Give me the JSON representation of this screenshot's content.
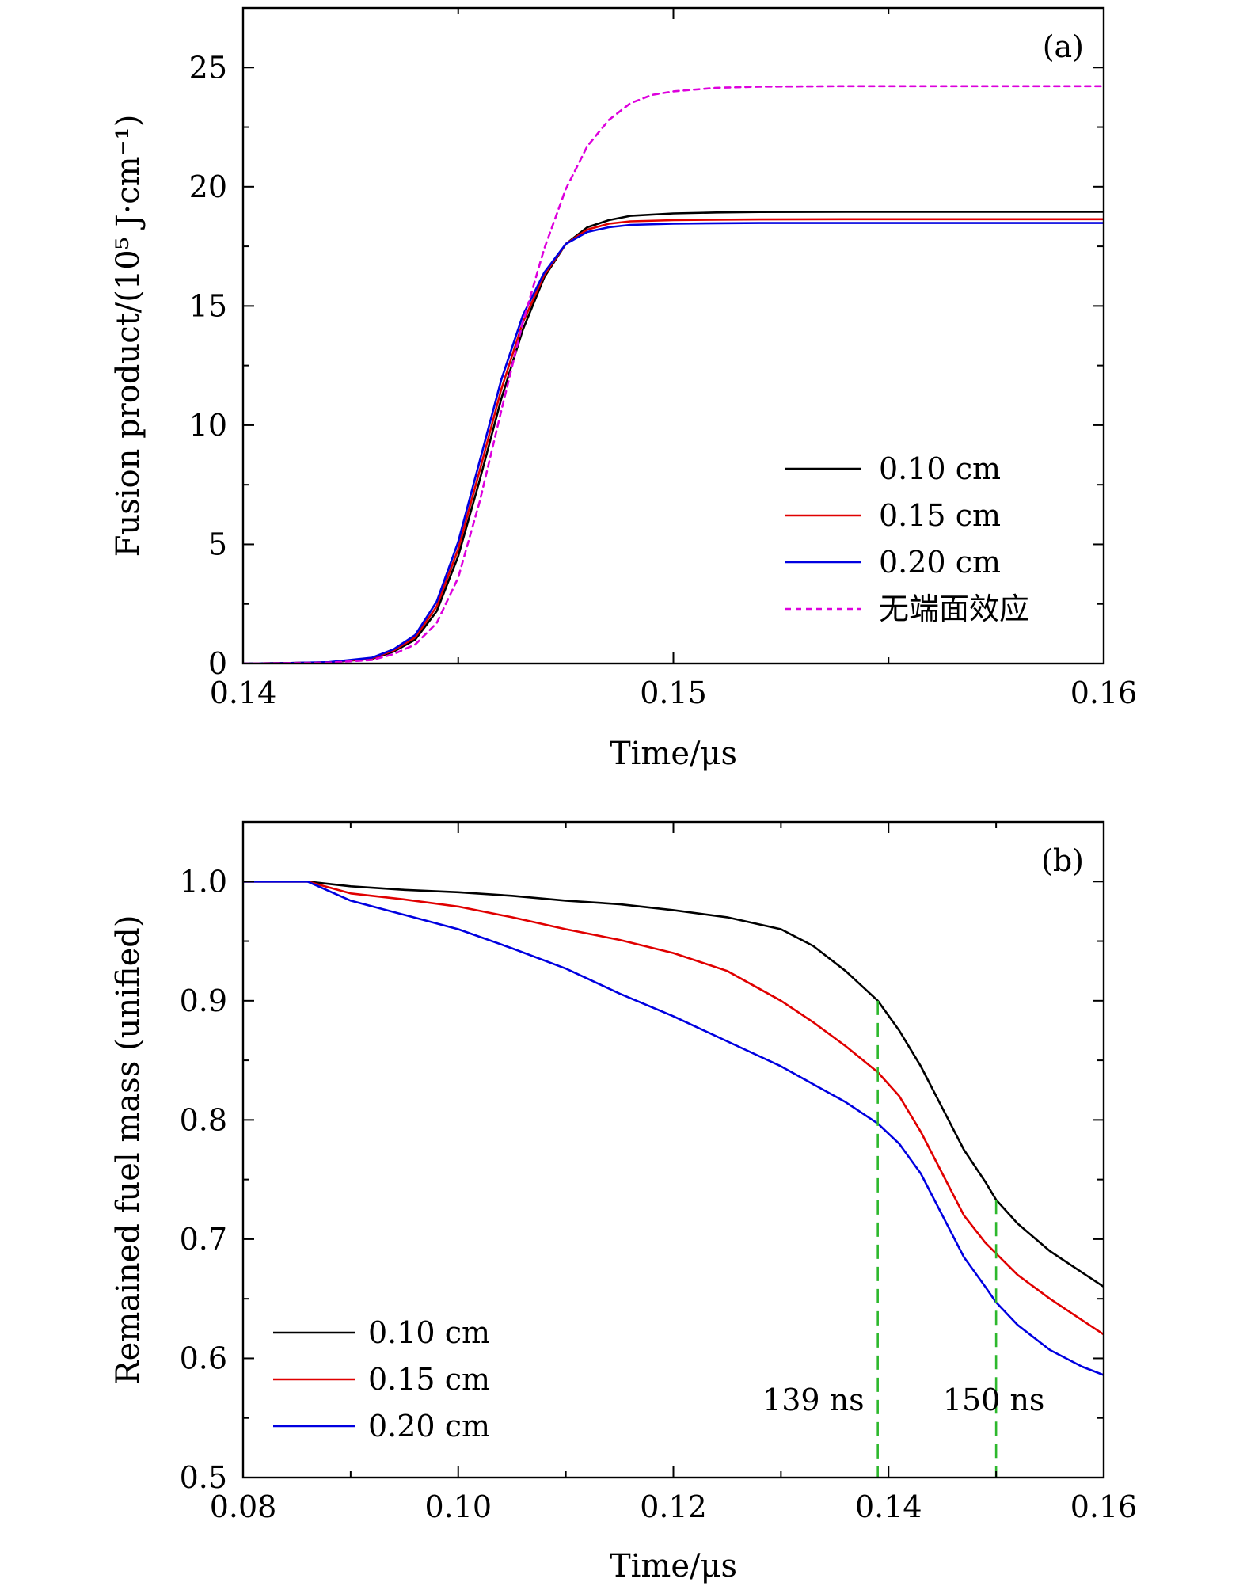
{
  "chart_data": [
    {
      "type": "line",
      "panel_label": "(a)",
      "xlabel": "Time/μs",
      "ylabel": "Fusion product/(10⁵ J·cm⁻¹)",
      "xlim": [
        0.14,
        0.16
      ],
      "ylim": [
        0,
        27.5
      ],
      "xticks": [
        0.14,
        0.15,
        0.16
      ],
      "xtick_labels": [
        "0.14",
        "0.15",
        "0.16"
      ],
      "xminor": [
        0.145,
        0.155
      ],
      "yticks": [
        0,
        5,
        10,
        15,
        20,
        25
      ],
      "ytick_labels": [
        "0",
        "5",
        "10",
        "15",
        "20",
        "25"
      ],
      "yminor": [
        2.5,
        7.5,
        12.5,
        17.5,
        22.5
      ],
      "legend_position": "right",
      "series": [
        {
          "name": "0.10 cm",
          "color": "#000000",
          "dash": "solid",
          "x": [
            0.14,
            0.141,
            0.142,
            0.143,
            0.1435,
            0.144,
            0.1445,
            0.145,
            0.1455,
            0.146,
            0.1465,
            0.147,
            0.1475,
            0.148,
            0.1485,
            0.149,
            0.15,
            0.151,
            0.152,
            0.154,
            0.156,
            0.158,
            0.16
          ],
          "y": [
            0,
            0.02,
            0.05,
            0.2,
            0.5,
            1.0,
            2.2,
            4.5,
            7.7,
            11.1,
            14.0,
            16.2,
            17.6,
            18.3,
            18.6,
            18.78,
            18.88,
            18.92,
            18.94,
            18.95,
            18.95,
            18.95,
            18.95
          ]
        },
        {
          "name": "0.15 cm",
          "color": "#e00000",
          "dash": "solid",
          "x": [
            0.14,
            0.141,
            0.142,
            0.143,
            0.1435,
            0.144,
            0.1445,
            0.145,
            0.1455,
            0.146,
            0.1465,
            0.147,
            0.1475,
            0.148,
            0.1485,
            0.149,
            0.15,
            0.151,
            0.152,
            0.154,
            0.156,
            0.158,
            0.16
          ],
          "y": [
            0,
            0.02,
            0.05,
            0.22,
            0.55,
            1.1,
            2.4,
            4.8,
            8.1,
            11.5,
            14.3,
            16.3,
            17.6,
            18.2,
            18.45,
            18.55,
            18.6,
            18.62,
            18.63,
            18.64,
            18.64,
            18.64,
            18.64
          ]
        },
        {
          "name": "0.20 cm",
          "color": "#0000e0",
          "dash": "solid",
          "x": [
            0.14,
            0.141,
            0.142,
            0.143,
            0.1435,
            0.144,
            0.1445,
            0.145,
            0.1455,
            0.146,
            0.1465,
            0.147,
            0.1475,
            0.148,
            0.1485,
            0.149,
            0.15,
            0.151,
            0.152,
            0.154,
            0.156,
            0.158,
            0.16
          ],
          "y": [
            0,
            0.02,
            0.06,
            0.25,
            0.6,
            1.2,
            2.6,
            5.1,
            8.5,
            11.9,
            14.6,
            16.4,
            17.6,
            18.1,
            18.3,
            18.4,
            18.45,
            18.47,
            18.48,
            18.48,
            18.48,
            18.48,
            18.48
          ]
        },
        {
          "name": "无端面效应",
          "color": "#dd00dd",
          "dash": "dashed",
          "x": [
            0.14,
            0.141,
            0.142,
            0.143,
            0.1435,
            0.144,
            0.1445,
            0.145,
            0.1455,
            0.146,
            0.1465,
            0.147,
            0.1475,
            0.148,
            0.1485,
            0.149,
            0.1495,
            0.15,
            0.151,
            0.152,
            0.154,
            0.156,
            0.158,
            0.16
          ],
          "y": [
            0,
            0.02,
            0.04,
            0.15,
            0.4,
            0.8,
            1.7,
            3.6,
            6.8,
            10.6,
            14.3,
            17.4,
            19.9,
            21.7,
            22.8,
            23.5,
            23.85,
            24.0,
            24.15,
            24.2,
            24.22,
            24.22,
            24.22,
            24.22
          ]
        }
      ]
    },
    {
      "type": "line",
      "panel_label": "(b)",
      "xlabel": "Time/μs",
      "ylabel": "Remained fuel mass (unified)",
      "xlim": [
        0.08,
        0.16
      ],
      "ylim": [
        0.5,
        1.05
      ],
      "xticks": [
        0.08,
        0.1,
        0.12,
        0.14,
        0.16
      ],
      "xtick_labels": [
        "0.08",
        "0.10",
        "0.12",
        "0.14",
        "0.16"
      ],
      "xminor": [
        0.09,
        0.11,
        0.13,
        0.15
      ],
      "yticks": [
        0.5,
        0.6,
        0.7,
        0.8,
        0.9,
        1.0
      ],
      "ytick_labels": [
        "0.5",
        "0.6",
        "0.7",
        "0.8",
        "0.9",
        "1.0"
      ],
      "yminor": [
        0.55,
        0.65,
        0.75,
        0.85,
        0.95
      ],
      "legend_position": "bottom-left",
      "series": [
        {
          "name": "0.10 cm",
          "color": "#000000",
          "dash": "solid",
          "x": [
            0.08,
            0.086,
            0.09,
            0.095,
            0.1,
            0.105,
            0.11,
            0.115,
            0.12,
            0.125,
            0.13,
            0.133,
            0.136,
            0.139,
            0.141,
            0.143,
            0.145,
            0.147,
            0.149,
            0.15,
            0.152,
            0.155,
            0.158,
            0.16
          ],
          "y": [
            1.0,
            1.0,
            0.996,
            0.993,
            0.991,
            0.988,
            0.984,
            0.981,
            0.976,
            0.97,
            0.96,
            0.946,
            0.925,
            0.9,
            0.875,
            0.845,
            0.81,
            0.775,
            0.748,
            0.733,
            0.713,
            0.69,
            0.672,
            0.66
          ]
        },
        {
          "name": "0.15 cm",
          "color": "#e00000",
          "dash": "solid",
          "x": [
            0.08,
            0.086,
            0.09,
            0.095,
            0.1,
            0.105,
            0.11,
            0.115,
            0.12,
            0.125,
            0.13,
            0.133,
            0.136,
            0.139,
            0.141,
            0.143,
            0.145,
            0.147,
            0.149,
            0.15,
            0.152,
            0.155,
            0.158,
            0.16
          ],
          "y": [
            1.0,
            1.0,
            0.99,
            0.985,
            0.979,
            0.97,
            0.96,
            0.951,
            0.94,
            0.925,
            0.9,
            0.882,
            0.862,
            0.84,
            0.82,
            0.79,
            0.755,
            0.72,
            0.697,
            0.688,
            0.67,
            0.65,
            0.632,
            0.62
          ]
        },
        {
          "name": "0.20 cm",
          "color": "#0000e0",
          "dash": "solid",
          "x": [
            0.08,
            0.086,
            0.09,
            0.095,
            0.1,
            0.105,
            0.11,
            0.115,
            0.12,
            0.125,
            0.13,
            0.133,
            0.136,
            0.139,
            0.141,
            0.143,
            0.145,
            0.147,
            0.149,
            0.15,
            0.152,
            0.155,
            0.158,
            0.16
          ],
          "y": [
            1.0,
            1.0,
            0.984,
            0.972,
            0.96,
            0.944,
            0.927,
            0.906,
            0.887,
            0.866,
            0.845,
            0.83,
            0.815,
            0.797,
            0.78,
            0.755,
            0.72,
            0.685,
            0.66,
            0.647,
            0.628,
            0.607,
            0.593,
            0.586
          ]
        }
      ],
      "vlines": [
        {
          "x": 0.139,
          "y_top": 0.9,
          "color": "#2db82d",
          "label": "139 ns"
        },
        {
          "x": 0.15,
          "y_top": 0.733,
          "color": "#2db82d",
          "label": "150 ns"
        }
      ]
    }
  ]
}
